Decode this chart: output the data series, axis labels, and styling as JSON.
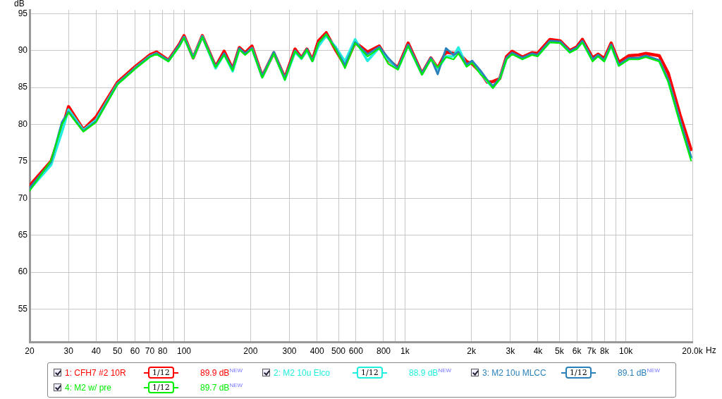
{
  "chart_data": {
    "type": "line",
    "ylabel": "dB",
    "xlabel": "Hz",
    "log": "x",
    "grid": true,
    "legend": "bottom",
    "marker": "none",
    "line_style": "solid",
    "xlim": [
      20,
      20000
    ],
    "ylim": [
      50.5,
      95.5
    ],
    "xticks": [
      20,
      30,
      40,
      50,
      60,
      70,
      80,
      {
        "value": 90,
        "label": null
      },
      100,
      200,
      300,
      400,
      500,
      600,
      800,
      {
        "value": 900,
        "label": null
      },
      {
        "value": 1000,
        "label": "1k"
      },
      {
        "value": 2000,
        "label": "2k"
      },
      {
        "value": 3000,
        "label": "3k"
      },
      {
        "value": 4000,
        "label": "4k"
      },
      {
        "value": 5000,
        "label": "5k"
      },
      {
        "value": 6000,
        "label": "6k"
      },
      {
        "value": 7000,
        "label": "7k"
      },
      {
        "value": 8000,
        "label": "8k"
      },
      {
        "value": 9000,
        "label": null
      },
      {
        "value": 10000,
        "label": "10k"
      },
      {
        "value": 20000,
        "label": "20.0k"
      }
    ],
    "yticks": [
      55,
      60,
      65,
      70,
      75,
      80,
      85,
      90,
      95
    ],
    "x": [
      20,
      25,
      28,
      30,
      35,
      40,
      50,
      60,
      70,
      75,
      85,
      95,
      100,
      110,
      121,
      139,
      152,
      166,
      178,
      189,
      203,
      226,
      255,
      286,
      318,
      340,
      360,
      381,
      406,
      440,
      487,
      535,
      595,
      677,
      765,
      840,
      929,
      1034,
      1194,
      1310,
      1407,
      1534,
      1660,
      1746,
      1902,
      2014,
      2194,
      2360,
      2500,
      2686,
      2884,
      3055,
      3401,
      3758,
      3982,
      4530,
      5047,
      5573,
      5996,
      6354,
      7068,
      7485,
      7982,
      8576,
      9290,
      10330,
      11430,
      12280,
      14160,
      15560,
      17580,
      19720
    ],
    "series": [
      {
        "name": "1: CFH7 #2 10R",
        "color": "#ff0000",
        "values": [
          71.7,
          75.0,
          79.3,
          82.4,
          79.3,
          81.0,
          85.7,
          87.8,
          89.4,
          89.8,
          88.7,
          90.8,
          92.0,
          89.0,
          92.0,
          87.8,
          89.9,
          87.5,
          90.4,
          89.7,
          90.6,
          86.5,
          89.7,
          86.3,
          90.2,
          89.0,
          90.2,
          88.7,
          91.3,
          92.4,
          90.0,
          88.0,
          91.1,
          89.8,
          90.6,
          88.7,
          87.7,
          91.0,
          86.9,
          89.0,
          87.6,
          89.8,
          89.6,
          89.7,
          88.5,
          88.2,
          87.1,
          85.7,
          85.8,
          86.2,
          89.2,
          89.9,
          89.1,
          89.7,
          89.6,
          91.5,
          91.3,
          90.0,
          90.5,
          91.5,
          89.0,
          89.5,
          88.9,
          91.0,
          88.4,
          89.3,
          89.4,
          89.6,
          89.3,
          86.9,
          81.3,
          76.6
        ]
      },
      {
        "name": "2: M2 10u Elco",
        "color": "#22eedd",
        "values": [
          71.2,
          74.5,
          79.0,
          82.0,
          79.2,
          80.6,
          85.5,
          87.6,
          89.2,
          89.6,
          88.6,
          90.6,
          91.8,
          89.0,
          91.9,
          87.6,
          89.5,
          87.2,
          90.2,
          89.5,
          90.3,
          86.4,
          89.7,
          86.1,
          89.8,
          88.9,
          90.0,
          88.6,
          90.6,
          92.0,
          90.4,
          88.5,
          91.5,
          88.6,
          90.4,
          88.8,
          87.5,
          90.7,
          86.8,
          88.9,
          87.5,
          89.2,
          89.2,
          90.4,
          87.9,
          88.5,
          87.0,
          85.8,
          85.0,
          86.2,
          88.9,
          89.6,
          88.9,
          89.5,
          89.3,
          91.2,
          91.1,
          89.8,
          90.3,
          91.2,
          88.7,
          89.3,
          88.6,
          90.7,
          88.0,
          88.9,
          88.9,
          89.2,
          88.6,
          85.9,
          80.4,
          75.5
        ]
      },
      {
        "name": "3: M2 10u MLCC",
        "color": "#2a80b9",
        "values": [
          71.4,
          74.9,
          80.3,
          81.7,
          79.1,
          80.4,
          85.5,
          87.6,
          89.2,
          89.6,
          88.6,
          90.7,
          91.8,
          89.0,
          91.9,
          87.8,
          89.6,
          87.5,
          90.3,
          89.6,
          90.3,
          86.5,
          89.8,
          86.2,
          90.0,
          89.0,
          90.2,
          88.6,
          91.0,
          92.2,
          90.2,
          88.0,
          91.1,
          89.5,
          90.5,
          89.0,
          87.6,
          90.8,
          86.9,
          89.0,
          86.8,
          90.3,
          89.4,
          89.8,
          88.1,
          88.6,
          87.3,
          86.0,
          85.2,
          86.2,
          89.0,
          89.7,
          89.0,
          89.6,
          89.4,
          91.3,
          91.2,
          89.9,
          90.4,
          91.3,
          88.8,
          89.4,
          88.7,
          90.8,
          88.1,
          89.0,
          89.0,
          89.3,
          88.7,
          86.0,
          80.5,
          75.6
        ]
      },
      {
        "name": "4: M2 w/ pre",
        "color": "#00ee00",
        "values": [
          71.0,
          75.1,
          80.0,
          81.6,
          79.0,
          80.3,
          85.4,
          87.5,
          89.1,
          89.5,
          88.5,
          90.5,
          91.7,
          88.9,
          91.8,
          87.7,
          89.4,
          87.3,
          90.1,
          89.4,
          90.2,
          86.3,
          89.6,
          86.0,
          89.9,
          88.9,
          90.1,
          88.5,
          91.0,
          92.2,
          90.1,
          87.6,
          91.0,
          89.2,
          90.3,
          88.2,
          87.4,
          90.6,
          86.7,
          88.8,
          87.7,
          89.1,
          88.8,
          89.6,
          87.8,
          88.3,
          86.8,
          85.9,
          84.9,
          86.1,
          88.8,
          89.5,
          88.8,
          89.4,
          89.2,
          91.1,
          91.0,
          89.7,
          90.2,
          91.1,
          88.5,
          89.2,
          88.5,
          90.6,
          87.9,
          88.8,
          88.8,
          89.1,
          88.5,
          85.7,
          80.1,
          75.1
        ]
      }
    ],
    "annotations": [
      "1/12",
      "89.9 dB$^{NEW}$",
      "1/12",
      "88.9 dB$^{NEW}$",
      "1/12",
      "89.1 dB$^{NEW}$",
      "1/12",
      "89.7 dB$^{NEW}$"
    ]
  }
}
